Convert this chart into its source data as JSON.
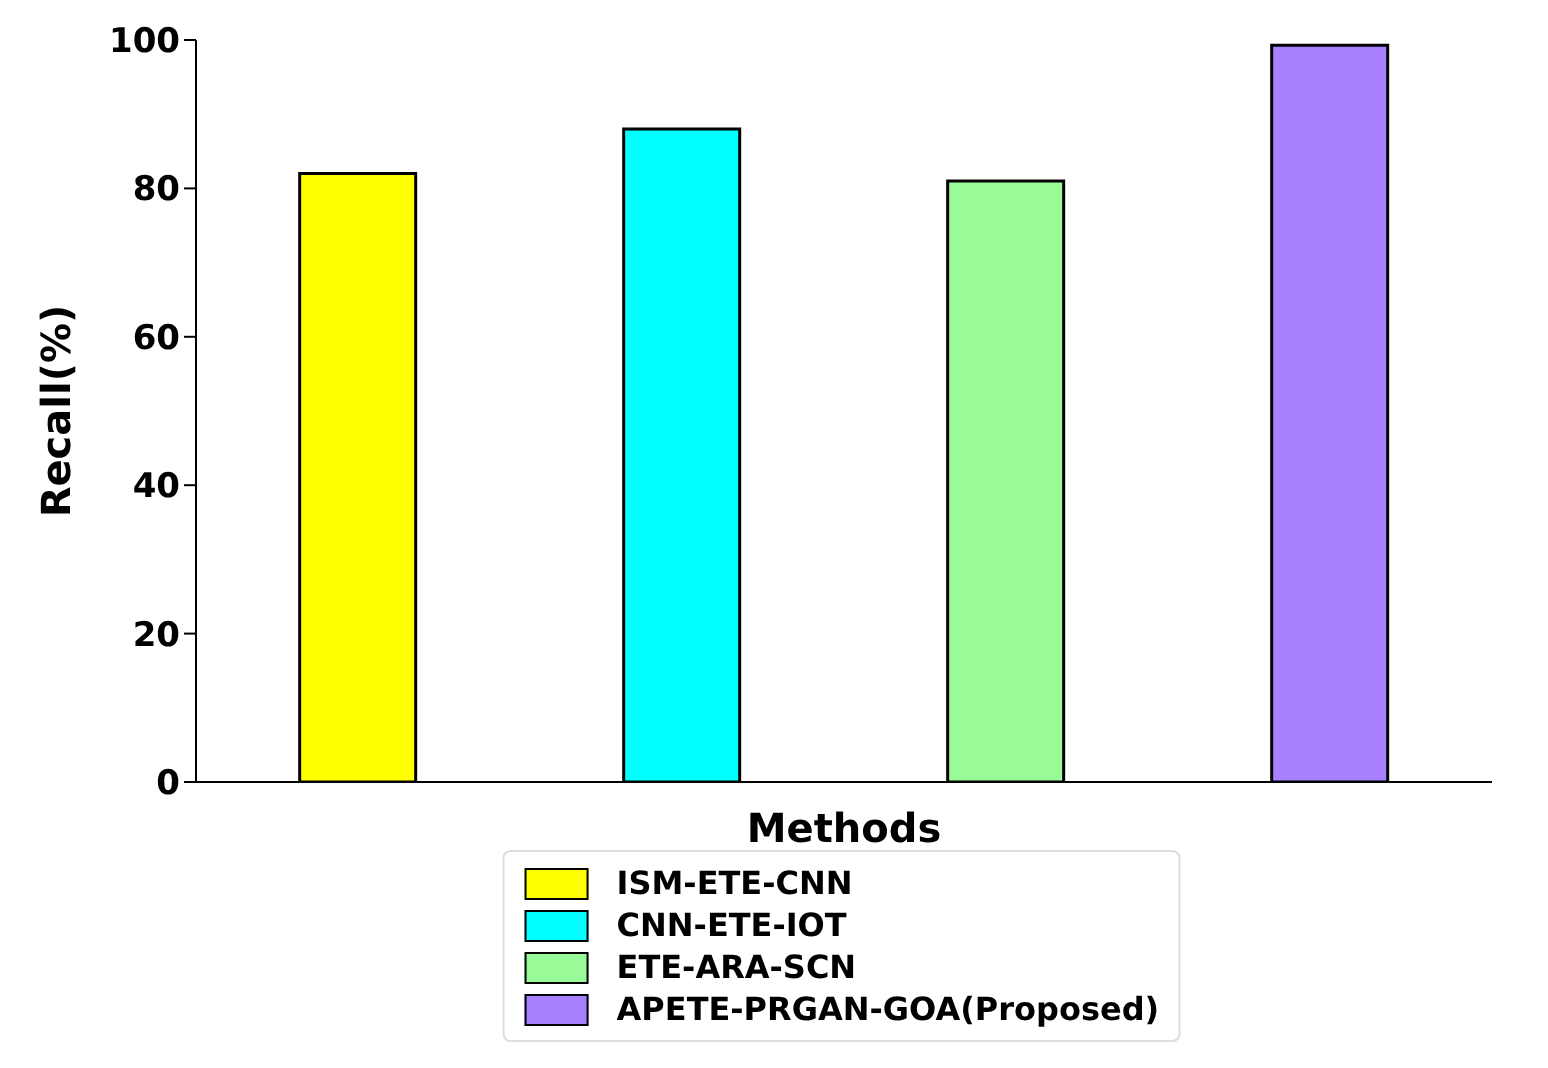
{
  "chart_data": {
    "type": "bar",
    "xlabel": "Methods",
    "ylabel": "Recall(%)",
    "categories": [
      null,
      null,
      null,
      null
    ],
    "series": [
      {
        "name": "ISM-ETE-CNN",
        "color": "#ffff00",
        "values": [
          82,
          null,
          null,
          null
        ]
      },
      {
        "name": "CNN-ETE-IOT",
        "color": "#00ffff",
        "values": [
          null,
          88,
          null,
          null
        ]
      },
      {
        "name": "ETE-ARA-SCN",
        "color": "#98fb98",
        "values": [
          null,
          null,
          81,
          null
        ]
      },
      {
        "name": "APETE-PRGAN-GOA(Proposed)",
        "color": "#a680ff",
        "values": [
          null,
          null,
          null,
          99.3
        ]
      }
    ],
    "ylim": [
      0,
      100
    ],
    "yticks": [
      0,
      20,
      40,
      60,
      80,
      100
    ],
    "legend": "bottom"
  }
}
